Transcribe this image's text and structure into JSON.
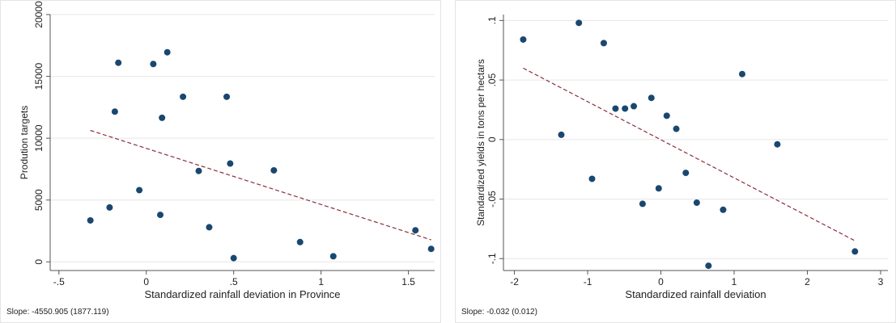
{
  "chart_data": [
    {
      "type": "scatter",
      "xlabel": "Standardized rainfall deviation in Province",
      "ylabel": "Prodution targets",
      "xlim": [
        -0.55,
        1.65
      ],
      "ylim": [
        -700,
        20000
      ],
      "xticks": [
        -0.5,
        0,
        0.5,
        1,
        1.5
      ],
      "xtick_labels": [
        "-.5",
        "0",
        ".5",
        "1",
        "1.5"
      ],
      "yticks": [
        0,
        5000,
        10000,
        15000,
        20000
      ],
      "ytick_labels": [
        "0",
        "5000",
        "10000",
        "15000",
        "20000"
      ],
      "grid": true,
      "footnote": "Slope: -4550.905 (1877.119)",
      "points": [
        {
          "x": -0.32,
          "y": 3350
        },
        {
          "x": -0.21,
          "y": 4400
        },
        {
          "x": -0.18,
          "y": 12150
        },
        {
          "x": -0.16,
          "y": 16100
        },
        {
          "x": -0.04,
          "y": 5800
        },
        {
          "x": 0.04,
          "y": 16000
        },
        {
          "x": 0.08,
          "y": 3800
        },
        {
          "x": 0.09,
          "y": 11650
        },
        {
          "x": 0.12,
          "y": 16950
        },
        {
          "x": 0.21,
          "y": 13350
        },
        {
          "x": 0.3,
          "y": 7350
        },
        {
          "x": 0.36,
          "y": 2800
        },
        {
          "x": 0.46,
          "y": 13350
        },
        {
          "x": 0.48,
          "y": 7950
        },
        {
          "x": 0.5,
          "y": 300
        },
        {
          "x": 0.73,
          "y": 7400
        },
        {
          "x": 0.88,
          "y": 1600
        },
        {
          "x": 1.07,
          "y": 450
        },
        {
          "x": 1.54,
          "y": 2550
        },
        {
          "x": 1.63,
          "y": 1050
        }
      ],
      "fit_line": {
        "x": [
          -0.32,
          1.63
        ],
        "y": [
          10630,
          1780
        ]
      }
    },
    {
      "type": "scatter",
      "xlabel": "Standardized rainfall deviation",
      "ylabel": "Standardized yields in tons per hectars",
      "xlim": [
        -2.15,
        3.1
      ],
      "ylim": [
        -0.11,
        0.105
      ],
      "xticks": [
        -2,
        -1,
        0,
        1,
        2,
        3
      ],
      "xtick_labels": [
        "-2",
        "-1",
        "0",
        "1",
        "2",
        "3"
      ],
      "yticks": [
        -0.1,
        -0.05,
        0,
        0.05,
        0.1
      ],
      "ytick_labels": [
        "-.1",
        "-.05",
        "0",
        ".05",
        ".1"
      ],
      "grid": true,
      "footnote": "Slope: -0.032 (0.012)",
      "points": [
        {
          "x": -1.88,
          "y": 0.084
        },
        {
          "x": -1.36,
          "y": 0.004
        },
        {
          "x": -1.12,
          "y": 0.098
        },
        {
          "x": -0.94,
          "y": -0.033
        },
        {
          "x": -0.78,
          "y": 0.081
        },
        {
          "x": -0.62,
          "y": 0.026
        },
        {
          "x": -0.49,
          "y": 0.026
        },
        {
          "x": -0.37,
          "y": 0.028
        },
        {
          "x": -0.25,
          "y": -0.054
        },
        {
          "x": -0.13,
          "y": 0.035
        },
        {
          "x": -0.03,
          "y": -0.041
        },
        {
          "x": 0.08,
          "y": 0.02
        },
        {
          "x": 0.21,
          "y": 0.009
        },
        {
          "x": 0.34,
          "y": -0.028
        },
        {
          "x": 0.49,
          "y": -0.053
        },
        {
          "x": 0.65,
          "y": -0.106
        },
        {
          "x": 0.85,
          "y": -0.059
        },
        {
          "x": 1.11,
          "y": 0.055
        },
        {
          "x": 1.59,
          "y": -0.004
        },
        {
          "x": 2.65,
          "y": -0.094
        }
      ],
      "fit_line": {
        "x": [
          -1.88,
          2.65
        ],
        "y": [
          0.06,
          -0.085
        ]
      }
    }
  ],
  "colors": {
    "marker": "#1a476f",
    "fit_line": "#8b2e3c",
    "grid": "#e6e6e6",
    "axis": "#555555"
  }
}
